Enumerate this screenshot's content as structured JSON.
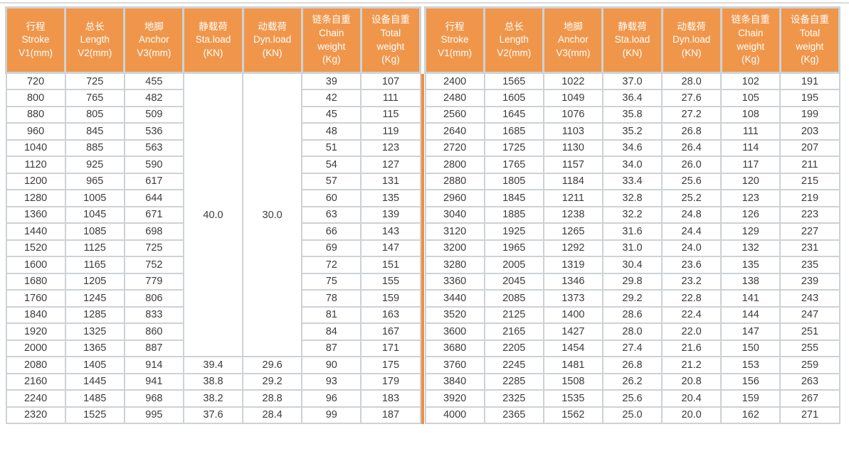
{
  "colors": {
    "header_bg": "#F0964B",
    "header_text": "#FFFFFF",
    "grid_line": "#CDD2D6",
    "divider": "#EE8F3E",
    "cell_text": "#3C3C3C",
    "top_rule": "#D9DBDD"
  },
  "columns": [
    {
      "id": "stroke",
      "lines": [
        "行程",
        "Stroke",
        "V1(mm)"
      ]
    },
    {
      "id": "length",
      "lines": [
        "总长",
        "Length",
        "V2(mm)"
      ]
    },
    {
      "id": "anchor",
      "lines": [
        "地脚",
        "Anchor",
        "V3(mm)"
      ]
    },
    {
      "id": "sta-load",
      "lines": [
        "静载荷",
        "Sta.load",
        "(KN)"
      ]
    },
    {
      "id": "dyn-load",
      "lines": [
        "动载荷",
        "Dyn.load",
        "(KN)"
      ]
    },
    {
      "id": "chain-weight",
      "lines": [
        "链条自重",
        "Chain",
        "weight",
        "(Kg)"
      ]
    },
    {
      "id": "total-weight",
      "lines": [
        "设备自重",
        "Total",
        "weight",
        "(Kg)"
      ]
    }
  ],
  "left": {
    "merged": {
      "sta_load": "40.0",
      "dyn_load": "30.0",
      "rowspan": 17
    },
    "rows": [
      [
        "720",
        "725",
        "455",
        null,
        null,
        "39",
        "107"
      ],
      [
        "800",
        "765",
        "482",
        null,
        null,
        "42",
        "111"
      ],
      [
        "880",
        "805",
        "509",
        null,
        null,
        "45",
        "115"
      ],
      [
        "960",
        "845",
        "536",
        null,
        null,
        "48",
        "119"
      ],
      [
        "1040",
        "885",
        "563",
        null,
        null,
        "51",
        "123"
      ],
      [
        "1120",
        "925",
        "590",
        null,
        null,
        "54",
        "127"
      ],
      [
        "1200",
        "965",
        "617",
        null,
        null,
        "57",
        "131"
      ],
      [
        "1280",
        "1005",
        "644",
        null,
        null,
        "60",
        "135"
      ],
      [
        "1360",
        "1045",
        "671",
        null,
        null,
        "63",
        "139"
      ],
      [
        "1440",
        "1085",
        "698",
        null,
        null,
        "66",
        "143"
      ],
      [
        "1520",
        "1125",
        "725",
        null,
        null,
        "69",
        "147"
      ],
      [
        "1600",
        "1165",
        "752",
        null,
        null,
        "72",
        "151"
      ],
      [
        "1680",
        "1205",
        "779",
        null,
        null,
        "75",
        "155"
      ],
      [
        "1760",
        "1245",
        "806",
        null,
        null,
        "78",
        "159"
      ],
      [
        "1840",
        "1285",
        "833",
        null,
        null,
        "81",
        "163"
      ],
      [
        "1920",
        "1325",
        "860",
        null,
        null,
        "84",
        "167"
      ],
      [
        "2000",
        "1365",
        "887",
        null,
        null,
        "87",
        "171"
      ],
      [
        "2080",
        "1405",
        "914",
        "39.4",
        "29.6",
        "90",
        "175"
      ],
      [
        "2160",
        "1445",
        "941",
        "38.8",
        "29.2",
        "93",
        "179"
      ],
      [
        "2240",
        "1485",
        "968",
        "38.2",
        "28.8",
        "96",
        "183"
      ],
      [
        "2320",
        "1525",
        "995",
        "37.6",
        "28.4",
        "99",
        "187"
      ]
    ]
  },
  "right": {
    "rows": [
      [
        "2400",
        "1565",
        "1022",
        "37.0",
        "28.0",
        "102",
        "191"
      ],
      [
        "2480",
        "1605",
        "1049",
        "36.4",
        "27.6",
        "105",
        "195"
      ],
      [
        "2560",
        "1645",
        "1076",
        "35.8",
        "27.2",
        "108",
        "199"
      ],
      [
        "2640",
        "1685",
        "1103",
        "35.2",
        "26.8",
        "111",
        "203"
      ],
      [
        "2720",
        "1725",
        "1130",
        "34.6",
        "26.4",
        "114",
        "207"
      ],
      [
        "2800",
        "1765",
        "1157",
        "34.0",
        "26.0",
        "117",
        "211"
      ],
      [
        "2880",
        "1805",
        "1184",
        "33.4",
        "25.6",
        "120",
        "215"
      ],
      [
        "2960",
        "1845",
        "1211",
        "32.8",
        "25.2",
        "123",
        "219"
      ],
      [
        "3040",
        "1885",
        "1238",
        "32.2",
        "24.8",
        "126",
        "223"
      ],
      [
        "3120",
        "1925",
        "1265",
        "31.6",
        "24.4",
        "129",
        "227"
      ],
      [
        "3200",
        "1965",
        "1292",
        "31.0",
        "24.0",
        "132",
        "231"
      ],
      [
        "3280",
        "2005",
        "1319",
        "30.4",
        "23.6",
        "135",
        "235"
      ],
      [
        "3360",
        "2045",
        "1346",
        "29.8",
        "23.2",
        "138",
        "239"
      ],
      [
        "3440",
        "2085",
        "1373",
        "29.2",
        "22.8",
        "141",
        "243"
      ],
      [
        "3520",
        "2125",
        "1400",
        "28.6",
        "22.4",
        "144",
        "247"
      ],
      [
        "3600",
        "2165",
        "1427",
        "28.0",
        "22.0",
        "147",
        "251"
      ],
      [
        "3680",
        "2205",
        "1454",
        "27.4",
        "21.6",
        "150",
        "255"
      ],
      [
        "3760",
        "2245",
        "1481",
        "26.8",
        "21.2",
        "153",
        "259"
      ],
      [
        "3840",
        "2285",
        "1508",
        "26.2",
        "20.8",
        "156",
        "263"
      ],
      [
        "3920",
        "2325",
        "1535",
        "25.6",
        "20.4",
        "159",
        "267"
      ],
      [
        "4000",
        "2365",
        "1562",
        "25.0",
        "20.0",
        "162",
        "271"
      ]
    ]
  }
}
